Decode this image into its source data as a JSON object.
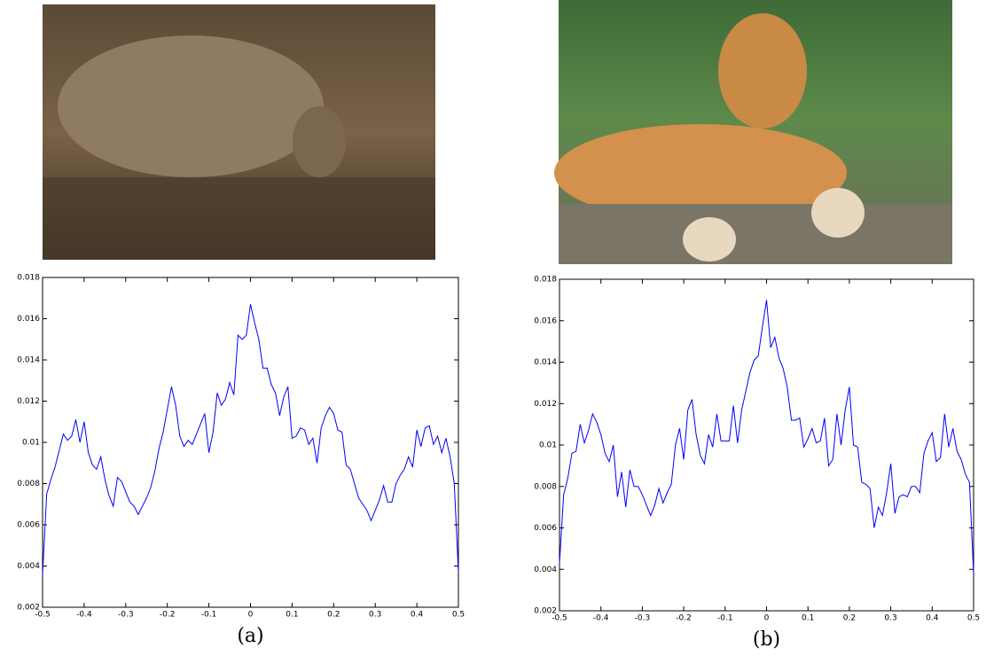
{
  "chart_data": [
    {
      "type": "line",
      "caption": "(a)",
      "color": "#0000ff",
      "xlim": [
        -0.5,
        0.5
      ],
      "ylim": [
        0.002,
        0.018
      ],
      "xticks": [
        -0.5,
        -0.4,
        -0.3,
        -0.2,
        -0.1,
        0,
        0.1,
        0.2,
        0.3,
        0.4,
        0.5
      ],
      "yticks": [
        0.002,
        0.004,
        0.006,
        0.008,
        0.01,
        0.012,
        0.014,
        0.016,
        0.018
      ],
      "x": [
        -0.5,
        -0.49,
        -0.48,
        -0.47,
        -0.46,
        -0.45,
        -0.44,
        -0.43,
        -0.42,
        -0.41,
        -0.4,
        -0.39,
        -0.38,
        -0.37,
        -0.36,
        -0.35,
        -0.34,
        -0.33,
        -0.32,
        -0.31,
        -0.3,
        -0.29,
        -0.28,
        -0.27,
        -0.26,
        -0.25,
        -0.24,
        -0.23,
        -0.22,
        -0.21,
        -0.2,
        -0.19,
        -0.18,
        -0.17,
        -0.16,
        -0.15,
        -0.14,
        -0.13,
        -0.12,
        -0.11,
        -0.1,
        -0.09,
        -0.08,
        -0.07,
        -0.06,
        -0.05,
        -0.04,
        -0.03,
        -0.02,
        -0.01,
        0,
        0.01,
        0.02,
        0.03,
        0.04,
        0.05,
        0.06,
        0.07,
        0.08,
        0.09,
        0.1,
        0.11,
        0.12,
        0.13,
        0.14,
        0.15,
        0.16,
        0.17,
        0.18,
        0.19,
        0.2,
        0.21,
        0.22,
        0.23,
        0.24,
        0.25,
        0.26,
        0.27,
        0.28,
        0.29,
        0.3,
        0.31,
        0.32,
        0.33,
        0.34,
        0.35,
        0.36,
        0.37,
        0.38,
        0.39,
        0.4,
        0.41,
        0.42,
        0.43,
        0.44,
        0.45,
        0.46,
        0.47,
        0.48,
        0.49,
        0.5
      ],
      "values": [
        0.0036,
        0.0075,
        0.0082,
        0.0088,
        0.0096,
        0.0104,
        0.0101,
        0.0103,
        0.0111,
        0.01,
        0.011,
        0.0095,
        0.0089,
        0.0087,
        0.0093,
        0.0082,
        0.0074,
        0.0069,
        0.0083,
        0.0081,
        0.0076,
        0.0071,
        0.0069,
        0.0065,
        0.0069,
        0.0073,
        0.0078,
        0.0086,
        0.0097,
        0.0105,
        0.0116,
        0.0127,
        0.0118,
        0.0103,
        0.0098,
        0.0101,
        0.0099,
        0.0104,
        0.0109,
        0.0114,
        0.0095,
        0.0105,
        0.0124,
        0.0118,
        0.0121,
        0.0129,
        0.0123,
        0.0152,
        0.015,
        0.0152,
        0.0167,
        0.0158,
        0.015,
        0.0136,
        0.0136,
        0.0128,
        0.0124,
        0.0113,
        0.0122,
        0.0127,
        0.0102,
        0.0103,
        0.0107,
        0.0106,
        0.0099,
        0.0102,
        0.009,
        0.0107,
        0.0113,
        0.0117,
        0.0114,
        0.0106,
        0.0105,
        0.0089,
        0.0087,
        0.008,
        0.0073,
        0.007,
        0.0067,
        0.0062,
        0.0067,
        0.0072,
        0.0079,
        0.0071,
        0.0071,
        0.008,
        0.0084,
        0.0087,
        0.0093,
        0.0088,
        0.0106,
        0.0098,
        0.0107,
        0.0108,
        0.0099,
        0.0103,
        0.0095,
        0.0102,
        0.0093,
        0.008,
        0.0037
      ]
    },
    {
      "type": "line",
      "caption": "(b)",
      "color": "#0000ff",
      "xlim": [
        -0.5,
        0.5
      ],
      "ylim": [
        0.002,
        0.018
      ],
      "xticks": [
        -0.5,
        -0.4,
        -0.3,
        -0.2,
        -0.1,
        0,
        0.1,
        0.2,
        0.3,
        0.4,
        0.5
      ],
      "yticks": [
        0.002,
        0.004,
        0.006,
        0.008,
        0.01,
        0.012,
        0.014,
        0.016,
        0.018
      ],
      "x": [
        -0.5,
        -0.49,
        -0.48,
        -0.47,
        -0.46,
        -0.45,
        -0.44,
        -0.43,
        -0.42,
        -0.41,
        -0.4,
        -0.39,
        -0.38,
        -0.37,
        -0.36,
        -0.35,
        -0.34,
        -0.33,
        -0.32,
        -0.31,
        -0.3,
        -0.29,
        -0.28,
        -0.27,
        -0.26,
        -0.25,
        -0.24,
        -0.23,
        -0.22,
        -0.21,
        -0.2,
        -0.19,
        -0.18,
        -0.17,
        -0.16,
        -0.15,
        -0.14,
        -0.13,
        -0.12,
        -0.11,
        -0.1,
        -0.09,
        -0.08,
        -0.07,
        -0.06,
        -0.05,
        -0.04,
        -0.03,
        -0.02,
        -0.01,
        0,
        0.01,
        0.02,
        0.03,
        0.04,
        0.05,
        0.06,
        0.07,
        0.08,
        0.09,
        0.1,
        0.11,
        0.12,
        0.13,
        0.14,
        0.15,
        0.16,
        0.17,
        0.18,
        0.19,
        0.2,
        0.21,
        0.22,
        0.23,
        0.24,
        0.25,
        0.26,
        0.27,
        0.28,
        0.29,
        0.3,
        0.31,
        0.32,
        0.33,
        0.34,
        0.35,
        0.36,
        0.37,
        0.38,
        0.39,
        0.4,
        0.41,
        0.42,
        0.43,
        0.44,
        0.45,
        0.46,
        0.47,
        0.48,
        0.49,
        0.5
      ],
      "values": [
        0.0043,
        0.0076,
        0.0084,
        0.0096,
        0.0097,
        0.011,
        0.0101,
        0.0107,
        0.0115,
        0.0111,
        0.0105,
        0.0096,
        0.0092,
        0.01,
        0.0075,
        0.0087,
        0.007,
        0.0088,
        0.008,
        0.008,
        0.0076,
        0.0071,
        0.0066,
        0.0071,
        0.0079,
        0.0072,
        0.0077,
        0.0081,
        0.01,
        0.0108,
        0.0093,
        0.0117,
        0.0122,
        0.0105,
        0.0095,
        0.0091,
        0.0105,
        0.0099,
        0.0115,
        0.0102,
        0.0102,
        0.0102,
        0.0119,
        0.0101,
        0.0117,
        0.0126,
        0.0135,
        0.0141,
        0.0143,
        0.0157,
        0.017,
        0.0147,
        0.0152,
        0.0142,
        0.0137,
        0.0128,
        0.0112,
        0.0112,
        0.0113,
        0.0099,
        0.0103,
        0.0108,
        0.0101,
        0.0102,
        0.0113,
        0.009,
        0.0093,
        0.0115,
        0.01,
        0.0117,
        0.0128,
        0.01,
        0.0099,
        0.0082,
        0.0081,
        0.0079,
        0.006,
        0.007,
        0.0066,
        0.0077,
        0.0091,
        0.0067,
        0.0075,
        0.0076,
        0.0075,
        0.008,
        0.008,
        0.0077,
        0.0096,
        0.0102,
        0.0106,
        0.0092,
        0.0094,
        0.0115,
        0.0099,
        0.0108,
        0.0097,
        0.0093,
        0.0086,
        0.0082,
        0.0038
      ]
    }
  ]
}
